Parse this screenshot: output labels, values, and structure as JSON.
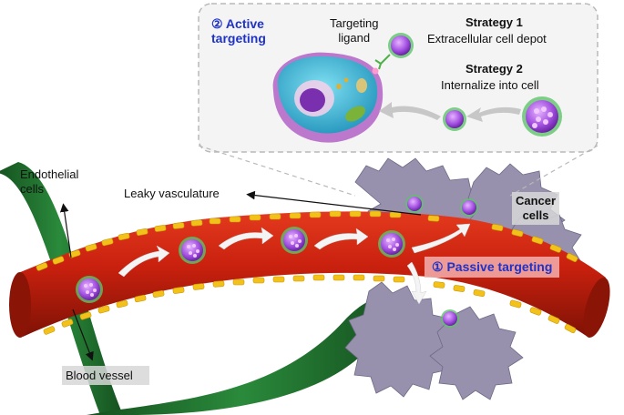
{
  "labels": {
    "active_targeting": "② Active\ntargeting",
    "targeting_ligand": "Targeting\nligand",
    "strategy1_title": "Strategy 1",
    "strategy1_desc": "Extracellular cell depot",
    "strategy2_title": "Strategy 2",
    "strategy2_desc": "Internalize into cell",
    "endothelial_cells": "Endothelial\ncells",
    "leaky_vasculature": "Leaky vasculature",
    "cancer_cells": "Cancer\ncells",
    "passive_targeting": "① Passive targeting",
    "blood_vessel": "Blood vessel"
  },
  "colors": {
    "vessel_red": "#c8200e",
    "vessel_dark": "#8a1406",
    "endothelial_yellow": "#f2c21a",
    "green_vessel": "#1e6b2e",
    "cancer_grey": "#8f8aa6",
    "nanoparticle_purple": "#9b4fd6",
    "ligand_green": "#4fb04a",
    "accent_blue": "#1f33c7"
  }
}
